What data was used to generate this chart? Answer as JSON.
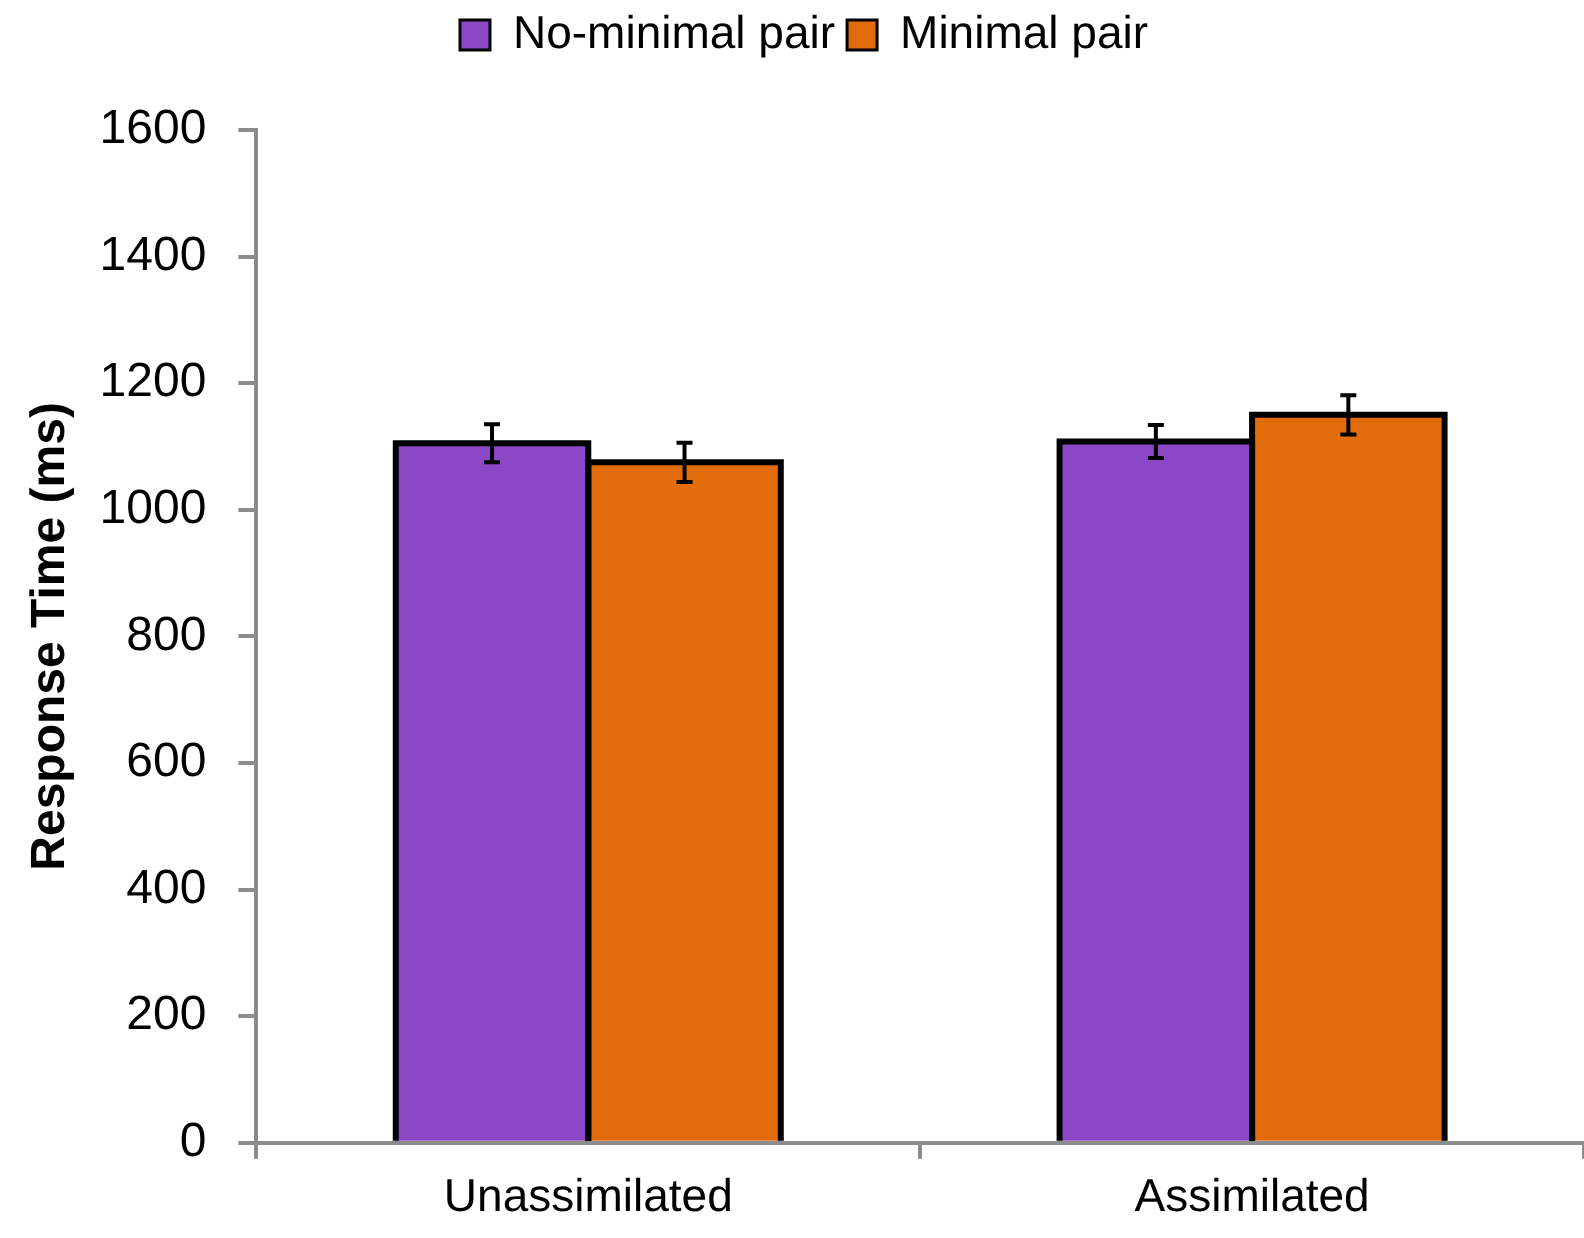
{
  "chart_data": {
    "type": "bar",
    "ylabel": "Response Time (ms)",
    "categories": [
      "Unassimilated",
      "Assimilated"
    ],
    "series": [
      {
        "name": "No-minimal pair",
        "color": "#8b47c6",
        "values": [
          1105,
          1108
        ],
        "errors": [
          30,
          26
        ]
      },
      {
        "name": "Minimal pair",
        "color": "#e36c0a",
        "values": [
          1075,
          1150
        ],
        "errors": [
          31,
          31
        ]
      }
    ],
    "ylim": [
      0,
      1600
    ],
    "yticks": [
      0,
      200,
      400,
      600,
      800,
      1000,
      1200,
      1400,
      1600
    ],
    "grid": false,
    "legend": "top"
  }
}
